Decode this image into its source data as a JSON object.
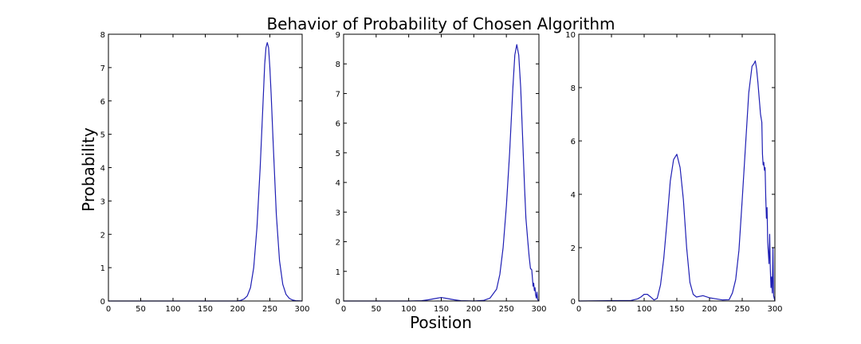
{
  "figure": {
    "title": "Behavior of Probability of Chosen Algorithm",
    "xlabel": "Position",
    "ylabel": "Probability"
  },
  "colors": {
    "line": "#1f1fb4",
    "axes": "#000000",
    "background": "#ffffff"
  },
  "chart_data": [
    {
      "type": "line",
      "xlim": [
        0,
        300
      ],
      "ylim": [
        0,
        8
      ],
      "xticks": [
        0,
        50,
        100,
        150,
        200,
        250,
        300
      ],
      "yticks": [
        0,
        1,
        2,
        3,
        4,
        5,
        6,
        7,
        8
      ],
      "grid": false,
      "series": [
        {
          "x": [
            0,
            50,
            100,
            150,
            200,
            205,
            210,
            215,
            220,
            225,
            230,
            235,
            240,
            242,
            244,
            246,
            248,
            250,
            252,
            255,
            260,
            265,
            270,
            275,
            280,
            285,
            290,
            300
          ],
          "y": [
            0,
            0,
            0,
            0,
            0,
            0.02,
            0.06,
            0.15,
            0.4,
            1.0,
            2.2,
            4.0,
            6.2,
            7.1,
            7.6,
            7.75,
            7.6,
            7.0,
            6.2,
            4.8,
            2.6,
            1.2,
            0.5,
            0.2,
            0.08,
            0.03,
            0.01,
            0
          ]
        }
      ]
    },
    {
      "type": "line",
      "xlim": [
        0,
        300
      ],
      "ylim": [
        0,
        9
      ],
      "xticks": [
        0,
        50,
        100,
        150,
        200,
        250,
        300
      ],
      "yticks": [
        0,
        1,
        2,
        3,
        4,
        5,
        6,
        7,
        8,
        9
      ],
      "grid": false,
      "series": [
        {
          "x": [
            0,
            100,
            120,
            130,
            140,
            150,
            160,
            170,
            180,
            200,
            215,
            225,
            235,
            240,
            245,
            250,
            255,
            260,
            263,
            266,
            269,
            272,
            275,
            278,
            280,
            283,
            285,
            287,
            289,
            291,
            292,
            293,
            294,
            295,
            296,
            297,
            298,
            300
          ],
          "y": [
            0,
            0,
            0.01,
            0.04,
            0.08,
            0.12,
            0.08,
            0.04,
            0.01,
            0,
            0.02,
            0.1,
            0.4,
            0.9,
            1.8,
            3.2,
            5.0,
            7.2,
            8.3,
            8.65,
            8.3,
            7.2,
            5.5,
            3.8,
            2.8,
            2.0,
            1.5,
            1.1,
            1.05,
            0.5,
            0.6,
            0.35,
            0.45,
            0.2,
            0.1,
            0.3,
            0.05,
            0
          ]
        }
      ]
    },
    {
      "type": "line",
      "xlim": [
        0,
        300
      ],
      "ylim": [
        0,
        10
      ],
      "xticks": [
        0,
        50,
        100,
        150,
        200,
        250,
        300
      ],
      "yticks": [
        0,
        2,
        4,
        6,
        8,
        10
      ],
      "grid": false,
      "series": [
        {
          "x": [
            0,
            80,
            90,
            95,
            100,
            105,
            110,
            115,
            120,
            125,
            130,
            135,
            140,
            145,
            150,
            155,
            160,
            165,
            170,
            175,
            180,
            190,
            200,
            210,
            220,
            230,
            235,
            240,
            245,
            250,
            255,
            260,
            265,
            268,
            270,
            272,
            274,
            276,
            278,
            280,
            281,
            282,
            283,
            284,
            285,
            286,
            287,
            288,
            289,
            290,
            291,
            292,
            293,
            294,
            295,
            296,
            297,
            298,
            300
          ],
          "y": [
            0,
            0.02,
            0.08,
            0.15,
            0.25,
            0.25,
            0.15,
            0.04,
            0.1,
            0.6,
            1.6,
            3.0,
            4.5,
            5.3,
            5.5,
            5.0,
            3.8,
            2.0,
            0.7,
            0.25,
            0.15,
            0.2,
            0.12,
            0.08,
            0.04,
            0.05,
            0.3,
            0.8,
            1.9,
            3.8,
            5.8,
            7.8,
            8.8,
            8.9,
            9.0,
            8.7,
            8.2,
            7.6,
            7.0,
            6.7,
            5.5,
            5.1,
            5.2,
            4.9,
            5.0,
            3.9,
            3.1,
            3.5,
            2.2,
            1.8,
            1.4,
            2.5,
            1.2,
            0.5,
            0.9,
            0.3,
            2.0,
            0.2,
            0
          ]
        }
      ]
    }
  ]
}
